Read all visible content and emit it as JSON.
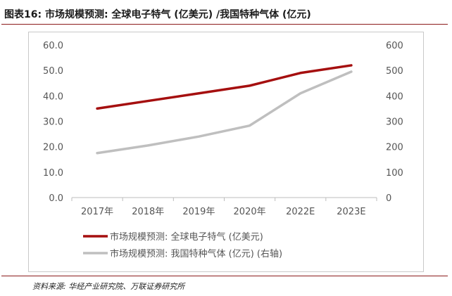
{
  "figure": {
    "title": "图表16:  市场规模预测: 全球电子特气 (亿美元) /我国特种气体 (亿元)",
    "source": "资料来源: 华经产业研究院、万联证券研究所"
  },
  "chart_data": {
    "type": "line",
    "categories": [
      "2017年",
      "2018年",
      "2019年",
      "2020年",
      "2022E",
      "2023E"
    ],
    "series": [
      {
        "name": "市场规模预测: 全球电子特气 (亿美元)",
        "axis": "left",
        "color": "#a50f0f",
        "values": [
          35.0,
          38.0,
          41.0,
          44.0,
          49.0,
          52.0
        ]
      },
      {
        "name": "市场规模预测: 我国特种气体 (亿元) (右轴)",
        "axis": "right",
        "color": "#bfbfbf",
        "values": [
          175,
          205,
          240,
          283,
          410,
          495
        ]
      }
    ],
    "y_left": {
      "ylim": [
        0,
        60
      ],
      "ticks": [
        "0.0",
        "10.0",
        "20.0",
        "30.0",
        "40.0",
        "50.0",
        "60.0"
      ]
    },
    "y_right": {
      "ylim": [
        0,
        600
      ],
      "ticks": [
        "0",
        "100",
        "200",
        "300",
        "400",
        "500",
        "600"
      ]
    },
    "grid": false,
    "legend_position": "bottom"
  }
}
